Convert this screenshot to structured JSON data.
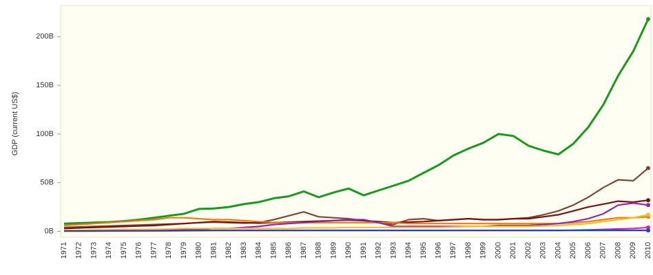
{
  "chart_data": {
    "type": "line",
    "y_label": "GDP (current US$)",
    "categories": [
      "1971",
      "1972",
      "1973",
      "1974",
      "1975",
      "1976",
      "1977",
      "1978",
      "1979",
      "1980",
      "1981",
      "1982",
      "1983",
      "1984",
      "1985",
      "1986",
      "1987",
      "1988",
      "1989",
      "1990",
      "1991",
      "1992",
      "1993",
      "1994",
      "1995",
      "1996",
      "1997",
      "1998",
      "1999",
      "2000",
      "2001",
      "2002",
      "2003",
      "2004",
      "2005",
      "2006",
      "2007",
      "2008",
      "2009",
      "2010"
    ],
    "series": [
      {
        "color": "#1a9a1a",
        "values": [
          8,
          8.5,
          9,
          9.5,
          10.5,
          12,
          14,
          16,
          18,
          23,
          23.5,
          25,
          28,
          30,
          34,
          36,
          41,
          35,
          40,
          44,
          37,
          42,
          47,
          52,
          60,
          68,
          78,
          85,
          91,
          100,
          98,
          88,
          83,
          79,
          90,
          107,
          130,
          160,
          185,
          218
        ]
      },
      {
        "color": "#7a4a32",
        "values": [
          4,
          4.5,
          5,
          5.5,
          6,
          6.5,
          7,
          7.5,
          8,
          9,
          9.5,
          9,
          8.5,
          9,
          12,
          16,
          20,
          15,
          14,
          13,
          11,
          9,
          7,
          12,
          13,
          11,
          12,
          13,
          12,
          12,
          13,
          14,
          17,
          21,
          27,
          35,
          45,
          53,
          52,
          65
        ]
      },
      {
        "color": "#7a1010",
        "values": [
          3,
          3.5,
          4,
          4.5,
          5,
          5.5,
          6,
          7,
          8,
          9,
          10,
          9.5,
          9,
          8.5,
          9,
          9.5,
          10,
          10.5,
          11,
          11.5,
          11,
          10,
          9,
          9.5,
          10,
          11,
          12,
          13,
          12,
          12,
          13,
          13,
          15,
          17,
          21,
          25,
          28,
          31,
          30,
          32
        ]
      },
      {
        "color": "#f07a10",
        "values": [
          6,
          7,
          8,
          9,
          10,
          11,
          12,
          14,
          14,
          13,
          12,
          12,
          11,
          10,
          9,
          9,
          9,
          9,
          9,
          9,
          9,
          9,
          9,
          8,
          8,
          8,
          8,
          8,
          8,
          8,
          8,
          8,
          8,
          8,
          9,
          10,
          12,
          14,
          14,
          15
        ]
      },
      {
        "color": "#8a2ab0",
        "values": [
          0.5,
          0.5,
          0.5,
          0.5,
          1,
          1,
          1,
          1.5,
          2,
          2,
          3,
          3,
          4,
          5,
          7,
          8,
          9,
          10,
          11,
          12,
          12,
          9,
          5,
          5,
          5,
          5,
          5,
          5,
          5,
          6,
          6,
          6,
          7,
          8,
          10,
          13,
          18,
          27,
          29,
          27
        ]
      },
      {
        "color": "#f0c020",
        "values": [
          1,
          1,
          1.5,
          1.5,
          2,
          2,
          2,
          2.5,
          3,
          3,
          3,
          3,
          3,
          3,
          3,
          3,
          3.5,
          3.5,
          3.5,
          4,
          4,
          4,
          4,
          4,
          4,
          4,
          4.5,
          5,
          5,
          5,
          5,
          5,
          5.5,
          6,
          7,
          8,
          10,
          12,
          14,
          17
        ]
      },
      {
        "color": "#e020a0",
        "values": [
          0.3,
          0.3,
          0.3,
          0.4,
          0.4,
          0.5,
          0.5,
          0.6,
          0.7,
          0.8,
          0.9,
          1,
          1,
          1,
          1,
          1,
          1,
          1,
          1,
          1,
          1,
          1,
          1,
          1,
          1,
          1,
          1,
          1,
          1,
          1,
          1,
          1,
          1,
          1,
          1.2,
          1.5,
          2,
          2.5,
          3,
          4
        ]
      },
      {
        "color": "#2040c0",
        "values": [
          0.5,
          0.5,
          0.5,
          0.5,
          0.6,
          0.6,
          0.7,
          0.7,
          0.8,
          0.8,
          0.9,
          0.9,
          0.9,
          0.9,
          0.9,
          1,
          1,
          1,
          1,
          1,
          1,
          1,
          1,
          1,
          1,
          1,
          1,
          1,
          1,
          1,
          1,
          1,
          1,
          1,
          1,
          1,
          1,
          1,
          1,
          1
        ]
      }
    ],
    "ylim": [
      -6,
      232
    ],
    "yticks": [
      {
        "value": 0,
        "label": "0B"
      },
      {
        "value": 50,
        "label": "50B"
      },
      {
        "value": 100,
        "label": "100B"
      },
      {
        "value": 150,
        "label": "150B"
      },
      {
        "value": 200,
        "label": "200B"
      }
    ]
  }
}
